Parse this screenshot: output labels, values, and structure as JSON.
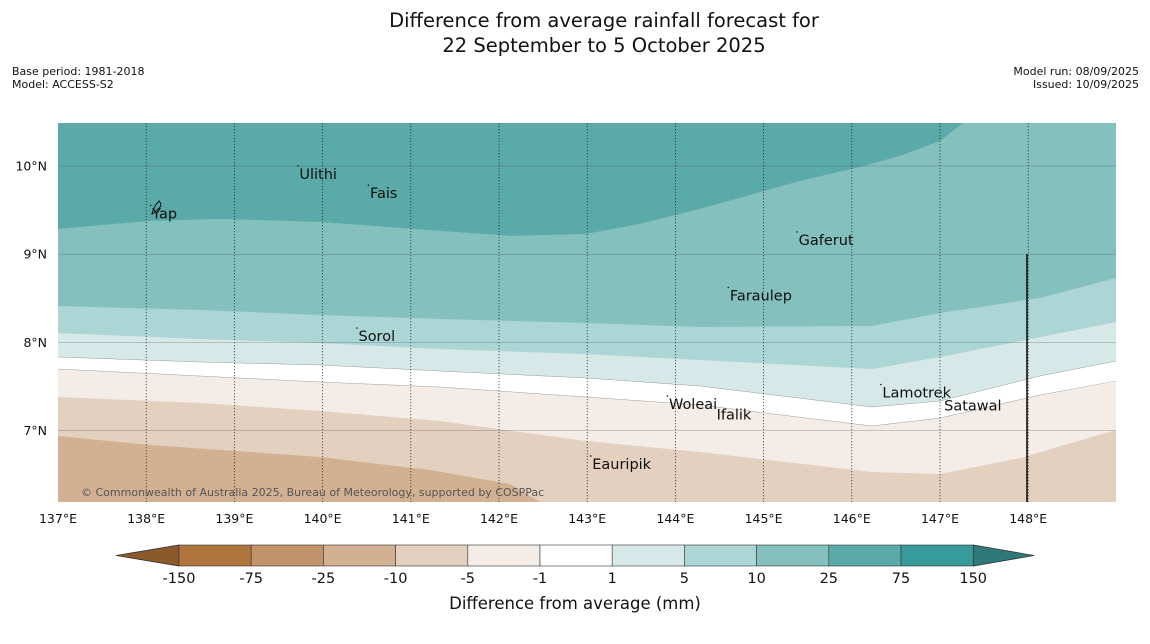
{
  "title": {
    "line1": "Difference from average rainfall forecast for",
    "line2": "22 September to 5 October 2025"
  },
  "meta": {
    "base_period": "Base period: 1981-2018",
    "model": "Model: ACCESS-S2",
    "model_run": "Model run: 08/09/2025",
    "issued": "Issued: 10/09/2025"
  },
  "map": {
    "lon_ticks": [
      "137°E",
      "138°E",
      "139°E",
      "140°E",
      "141°E",
      "142°E",
      "143°E",
      "144°E",
      "145°E",
      "146°E",
      "147°E",
      "148°E"
    ],
    "lat_ticks": [
      "10°N",
      "9°N",
      "8°N",
      "7°N"
    ],
    "places": [
      {
        "name": "Yap",
        "lon": 138.05,
        "lat": 9.53
      },
      {
        "name": "Ulithi",
        "lon": 139.72,
        "lat": 9.98
      },
      {
        "name": "Fais",
        "lon": 140.52,
        "lat": 9.76
      },
      {
        "name": "Gaferut",
        "lon": 145.38,
        "lat": 9.23
      },
      {
        "name": "Faraulep",
        "lon": 144.6,
        "lat": 8.6
      },
      {
        "name": "Sorol",
        "lon": 140.39,
        "lat": 8.14
      },
      {
        "name": "Lamotrek",
        "lon": 146.33,
        "lat": 7.5
      },
      {
        "name": "Woleai",
        "lon": 143.91,
        "lat": 7.37
      },
      {
        "name": "Ifalik",
        "lon": 144.45,
        "lat": 7.25
      },
      {
        "name": "Satawal",
        "lon": 147.03,
        "lat": 7.35
      },
      {
        "name": "Eauripik",
        "lon": 143.04,
        "lat": 6.69
      }
    ],
    "copyright": "© Commonwealth of Australia 2025, Bureau of Meteorology, supported by COSPPac"
  },
  "colorbar": {
    "title": "Difference from average (mm)",
    "labels": [
      "-150",
      "-75",
      "-25",
      "-10",
      "-5",
      "-1",
      "1",
      "5",
      "10",
      "25",
      "75",
      "150"
    ],
    "colors": [
      "#8b5a2b",
      "#b0753e",
      "#c2926a",
      "#d2b092",
      "#e3d0bf",
      "#f4ece6",
      "#ffffff",
      "#d6e9e8",
      "#acd5d5",
      "#84c0be",
      "#5baaaa",
      "#36999a",
      "#2e7a7a"
    ]
  }
}
